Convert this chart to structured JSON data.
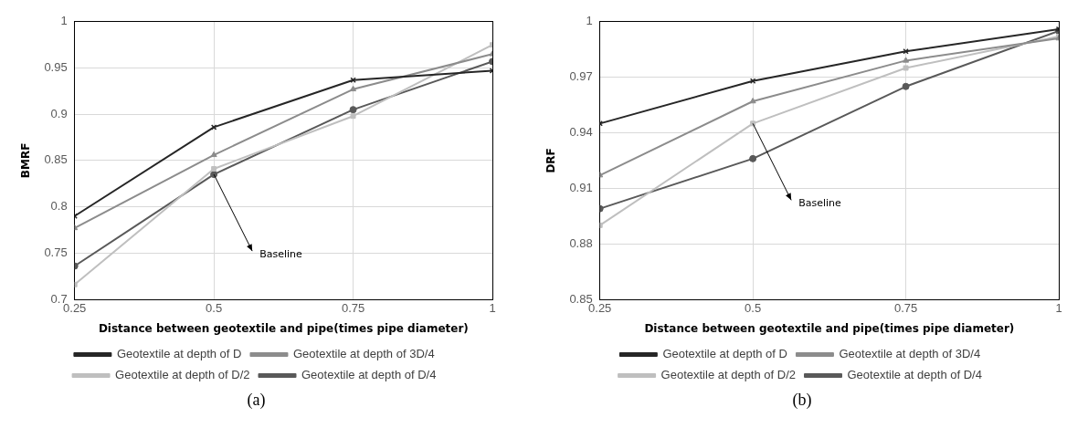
{
  "chart_data": [
    {
      "type": "line",
      "xlabel": "Distance between geotextile and pipe(times pipe diameter)",
      "ylabel": "BMRF",
      "x": [
        0.25,
        0.5,
        0.75,
        1
      ],
      "xlim": [
        0.25,
        1
      ],
      "xticks": [
        0.25,
        0.5,
        0.75,
        1
      ],
      "ylim": [
        0.7,
        1
      ],
      "yticks": [
        0.7,
        0.75,
        0.8,
        0.85,
        0.9,
        0.95,
        1
      ],
      "grid": true,
      "legend": "bottom",
      "line_style": "solid",
      "annotations": [
        {
          "text": "Baseline",
          "x": 0.5,
          "y": 0.835
        },
        "(a)"
      ],
      "series": [
        {
          "name": "Geotextile at depth of D",
          "color": "#262626",
          "marker": "cross",
          "values": [
            0.79,
            0.886,
            0.937,
            0.947
          ]
        },
        {
          "name": "Geotextile at depth of 3D/4",
          "color": "#8c8c8c",
          "marker": "triangle",
          "values": [
            0.777,
            0.856,
            0.927,
            0.965
          ]
        },
        {
          "name": "Geotextile at depth of D/2",
          "color": "#bfbfbf",
          "marker": "square",
          "values": [
            0.716,
            0.841,
            0.898,
            0.975
          ]
        },
        {
          "name": "Geotextile at depth of D/4",
          "color": "#595959",
          "marker": "circle",
          "values": [
            0.736,
            0.835,
            0.905,
            0.957
          ]
        }
      ]
    },
    {
      "type": "line",
      "xlabel": "Distance between geotextile and pipe(times pipe diameter)",
      "ylabel": "DRF",
      "x": [
        0.25,
        0.5,
        0.75,
        1
      ],
      "xlim": [
        0.25,
        1
      ],
      "xticks": [
        0.25,
        0.5,
        0.75,
        1
      ],
      "ylim": [
        0.85,
        1
      ],
      "yticks": [
        0.85,
        0.88,
        0.91,
        0.94,
        0.97,
        1
      ],
      "grid": true,
      "legend": "bottom",
      "line_style": "solid",
      "annotations": [
        {
          "text": "Baseline",
          "x": 0.5,
          "y": 0.945
        },
        "(b)"
      ],
      "series": [
        {
          "name": "Geotextile at depth of D",
          "color": "#262626",
          "marker": "cross",
          "values": [
            0.945,
            0.968,
            0.984,
            0.996
          ]
        },
        {
          "name": "Geotextile at depth of 3D/4",
          "color": "#8c8c8c",
          "marker": "triangle",
          "values": [
            0.917,
            0.957,
            0.979,
            0.991
          ]
        },
        {
          "name": "Geotextile at depth of D/2",
          "color": "#bfbfbf",
          "marker": "square",
          "values": [
            0.89,
            0.945,
            0.975,
            0.992
          ]
        },
        {
          "name": "Geotextile at depth of D/4",
          "color": "#595959",
          "marker": "circle",
          "values": [
            0.899,
            0.926,
            0.965,
            0.995
          ]
        }
      ]
    }
  ]
}
